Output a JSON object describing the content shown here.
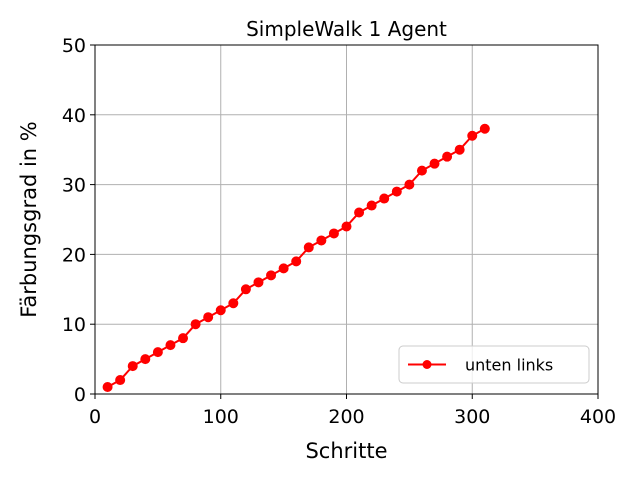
{
  "chart_data": {
    "type": "line",
    "title": "SimpleWalk 1 Agent",
    "xlabel": "Schritte",
    "ylabel": "Färbungsgrad in %",
    "xlim": [
      0,
      400
    ],
    "ylim": [
      0,
      50
    ],
    "xticks": [
      0,
      100,
      200,
      300,
      400
    ],
    "yticks": [
      0,
      10,
      20,
      30,
      40,
      50
    ],
    "xtick_labels": [
      "0",
      "100",
      "200",
      "300",
      "400"
    ],
    "ytick_labels": [
      "0",
      "10",
      "20",
      "30",
      "40",
      "50"
    ],
    "grid": true,
    "legend_position": "lower-right",
    "series": [
      {
        "name": "unten links",
        "color": "#ff0000",
        "marker": "circle",
        "x": [
          10,
          20,
          30,
          40,
          50,
          60,
          70,
          80,
          90,
          100,
          110,
          120,
          130,
          140,
          150,
          160,
          170,
          180,
          190,
          200,
          210,
          220,
          230,
          240,
          250,
          260,
          270,
          280,
          290,
          300,
          310
        ],
        "y": [
          1,
          2,
          4,
          5,
          6,
          7,
          8,
          10,
          11,
          12,
          13,
          15,
          16,
          17,
          18,
          19,
          21,
          22,
          23,
          24,
          26,
          27,
          28,
          29,
          30,
          32,
          33,
          34,
          35,
          37,
          38
        ]
      }
    ]
  }
}
